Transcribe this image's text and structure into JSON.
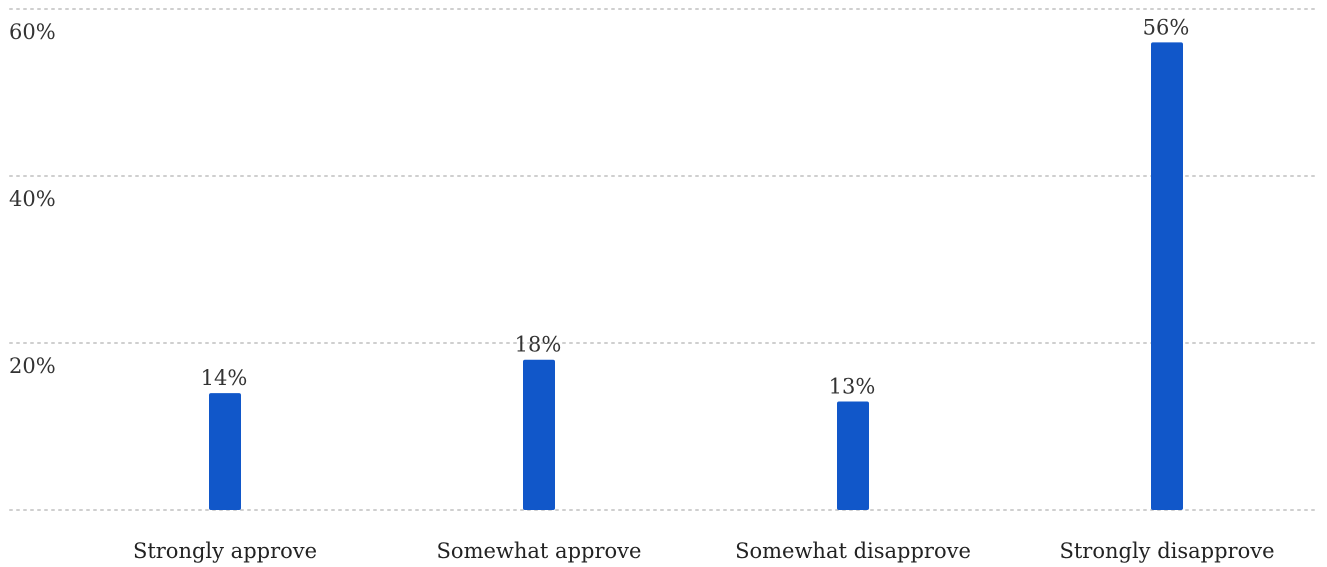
{
  "chart_data": {
    "type": "bar",
    "title": "",
    "xlabel": "",
    "ylabel": "",
    "categories": [
      "Strongly approve",
      "Somewhat approve",
      "Somewhat disapprove",
      "Strongly disapprove"
    ],
    "values": [
      14,
      18,
      13,
      56
    ],
    "value_labels": [
      "14%",
      "18%",
      "13%",
      "56%"
    ],
    "ylim": [
      0,
      60
    ],
    "yticks": [
      20,
      40,
      60
    ],
    "ytick_labels": [
      "20%",
      "40%",
      "60%"
    ],
    "grid": true,
    "legend": "none",
    "bar_color": "#1157c9"
  }
}
